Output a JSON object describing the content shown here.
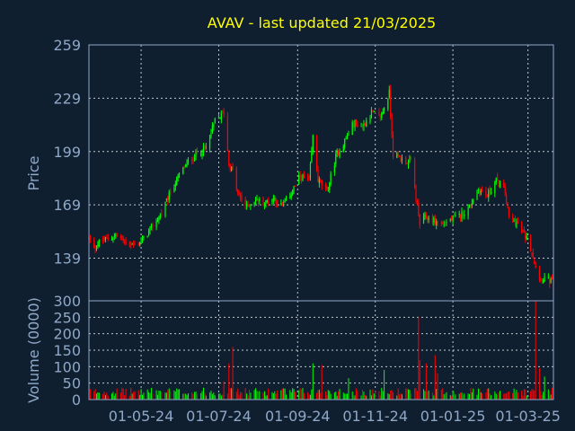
{
  "chart_data": [
    {
      "type": "candlestick",
      "title": "AVAV - last updated 21/03/2025",
      "ylabel": "Price",
      "ylim": [
        115,
        259
      ],
      "yticks": [
        139,
        169,
        199,
        229,
        259
      ],
      "x_range": [
        "2024-03-21",
        "2025-03-21"
      ],
      "xtick_labels": [
        "01-05-24",
        "01-07-24",
        "01-09-24",
        "01-11-24",
        "01-01-25",
        "01-03-25"
      ],
      "xtick_dates": [
        "2024-05-01",
        "2024-07-01",
        "2024-09-01",
        "2024-11-01",
        "2025-01-01",
        "2025-03-01"
      ],
      "up_color": "#00ff00",
      "down_color": "#ff0000",
      "grid": true,
      "close_path": [
        [
          "2024-03-21",
          150
        ],
        [
          "2024-03-25",
          144
        ],
        [
          "2024-03-29",
          148
        ],
        [
          "2024-04-05",
          150
        ],
        [
          "2024-04-12",
          152
        ],
        [
          "2024-04-19",
          148
        ],
        [
          "2024-04-26",
          146
        ],
        [
          "2024-05-03",
          150
        ],
        [
          "2024-05-10",
          157
        ],
        [
          "2024-05-17",
          164
        ],
        [
          "2024-05-24",
          176
        ],
        [
          "2024-05-31",
          186
        ],
        [
          "2024-06-07",
          193
        ],
        [
          "2024-06-14",
          198
        ],
        [
          "2024-06-21",
          201
        ],
        [
          "2024-06-28",
          216
        ],
        [
          "2024-07-05",
          221
        ],
        [
          "2024-07-09",
          192
        ],
        [
          "2024-07-12",
          188
        ],
        [
          "2024-07-16",
          175
        ],
        [
          "2024-07-23",
          168
        ],
        [
          "2024-07-30",
          172
        ],
        [
          "2024-08-06",
          170
        ],
        [
          "2024-08-13",
          173
        ],
        [
          "2024-08-20",
          168
        ],
        [
          "2024-08-27",
          176
        ],
        [
          "2024-09-03",
          185
        ],
        [
          "2024-09-10",
          182
        ],
        [
          "2024-09-13",
          207
        ],
        [
          "2024-09-17",
          183
        ],
        [
          "2024-09-24",
          176
        ],
        [
          "2024-10-01",
          196
        ],
        [
          "2024-10-08",
          205
        ],
        [
          "2024-10-15",
          215
        ],
        [
          "2024-10-22",
          213
        ],
        [
          "2024-10-29",
          221
        ],
        [
          "2024-11-05",
          218
        ],
        [
          "2024-11-12",
          232
        ],
        [
          "2024-11-15",
          198
        ],
        [
          "2024-11-19",
          196
        ],
        [
          "2024-11-26",
          193
        ],
        [
          "2024-11-29",
          194
        ],
        [
          "2024-12-03",
          173
        ],
        [
          "2024-12-06",
          158
        ],
        [
          "2024-12-10",
          162
        ],
        [
          "2024-12-17",
          160
        ],
        [
          "2024-12-24",
          158
        ],
        [
          "2024-12-31",
          161
        ],
        [
          "2025-01-07",
          163
        ],
        [
          "2025-01-14",
          168
        ],
        [
          "2025-01-21",
          178
        ],
        [
          "2025-01-28",
          174
        ],
        [
          "2025-02-04",
          183
        ],
        [
          "2025-02-11",
          176
        ],
        [
          "2025-02-14",
          162
        ],
        [
          "2025-02-21",
          158
        ],
        [
          "2025-02-28",
          150
        ],
        [
          "2025-03-04",
          143
        ],
        [
          "2025-03-07",
          134
        ],
        [
          "2025-03-11",
          127
        ],
        [
          "2025-03-14",
          128
        ],
        [
          "2025-03-18",
          126
        ],
        [
          "2025-03-21",
          125
        ]
      ]
    },
    {
      "type": "bar",
      "ylabel": "Volume (0000)",
      "ylim": [
        0,
        300
      ],
      "yticks": [
        0,
        50,
        100,
        150,
        200,
        250,
        300
      ],
      "base_volume": 28,
      "spikes": [
        [
          "2024-07-05",
          55
        ],
        [
          "2024-07-09",
          110
        ],
        [
          "2024-07-12",
          160
        ],
        [
          "2024-09-13",
          110
        ],
        [
          "2024-09-20",
          105
        ],
        [
          "2024-10-11",
          65
        ],
        [
          "2024-11-08",
          90
        ],
        [
          "2024-12-05",
          250
        ],
        [
          "2024-12-06",
          120
        ],
        [
          "2024-12-11",
          110
        ],
        [
          "2024-12-18",
          135
        ],
        [
          "2024-12-20",
          80
        ],
        [
          "2025-03-07",
          300
        ],
        [
          "2025-03-10",
          95
        ],
        [
          "2025-03-14",
          70
        ],
        [
          "2025-03-21",
          75
        ]
      ]
    }
  ]
}
